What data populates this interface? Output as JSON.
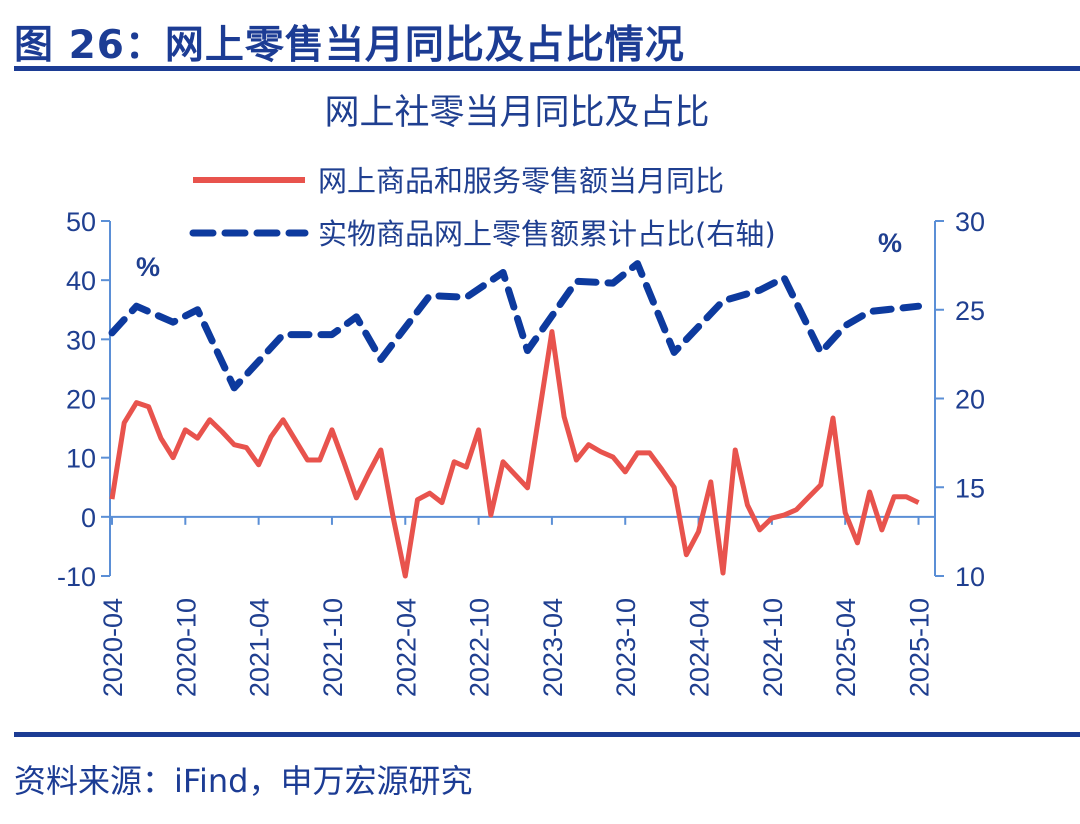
{
  "figure_title": "图 26：网上零售当月同比及占比情况",
  "source": "资料来源：iFind，申万宏源研究",
  "colors": {
    "red": "#e8534d",
    "blue": "#0d3a9e",
    "axis": "#5b8fd6",
    "text": "#1f3f90"
  },
  "chart_data": {
    "type": "line",
    "title": "网上社零当月同比及占比",
    "left_unit": "%",
    "right_unit": "%",
    "x_start": "2020-04",
    "x_end": "2025-10",
    "x_ticks": [
      "2020-04",
      "2020-10",
      "2021-04",
      "2021-10",
      "2022-04",
      "2022-10",
      "2023-04",
      "2023-10",
      "2024-04",
      "2024-10",
      "2025-04",
      "2025-10"
    ],
    "y_left": {
      "min": -10,
      "max": 50,
      "ticks": [
        "-10",
        "0",
        "10",
        "20",
        "30",
        "40",
        "50"
      ]
    },
    "y_right": {
      "min": 10,
      "max": 30,
      "ticks": [
        "10",
        "15",
        "20",
        "25",
        "30"
      ]
    },
    "legend_position": "top",
    "series": [
      {
        "name": "网上商品和服务零售额当月同比",
        "axis": "left",
        "style": "solid",
        "values": [
          3.0,
          15.9,
          19.3,
          18.6,
          13.3,
          10.0,
          14.7,
          13.3,
          16.4,
          14.4,
          12.2,
          11.7,
          8.8,
          13.5,
          16.4,
          13.0,
          9.6,
          9.6,
          14.7,
          9.1,
          3.2,
          7.4,
          11.3,
          0.0,
          -10.0,
          2.9,
          4.0,
          2.4,
          9.3,
          8.4,
          14.7,
          0.3,
          9.3,
          7.1,
          4.9,
          18.0,
          31.3,
          16.9,
          9.6,
          12.2,
          11.0,
          10.1,
          7.6,
          10.8,
          10.8,
          8.0,
          5.0,
          -6.4,
          -2.5,
          5.9,
          -9.5,
          11.3,
          2.0,
          -2.2,
          -0.2,
          0.3,
          1.2,
          3.3,
          5.4,
          16.7,
          0.7,
          -4.4,
          4.2,
          -2.2,
          3.4,
          3.4,
          2.4
        ]
      },
      {
        "name": "实物商品网上零售额累计占比(右轴)",
        "axis": "right",
        "style": "dashed",
        "points": [
          {
            "month": "2020-04",
            "value": 23.7
          },
          {
            "month": "2020-06",
            "value": 25.2
          },
          {
            "month": "2020-09",
            "value": 24.3
          },
          {
            "month": "2020-11",
            "value": 25.0
          },
          {
            "month": "2021-02",
            "value": 20.6
          },
          {
            "month": "2021-06",
            "value": 23.6
          },
          {
            "month": "2021-10",
            "value": 23.6
          },
          {
            "month": "2021-12",
            "value": 24.6
          },
          {
            "month": "2022-02",
            "value": 22.2
          },
          {
            "month": "2022-06",
            "value": 25.8
          },
          {
            "month": "2022-09",
            "value": 25.7
          },
          {
            "month": "2022-12",
            "value": 27.1
          },
          {
            "month": "2023-02",
            "value": 22.7
          },
          {
            "month": "2023-06",
            "value": 26.6
          },
          {
            "month": "2023-09",
            "value": 26.5
          },
          {
            "month": "2023-11",
            "value": 27.6
          },
          {
            "month": "2024-02",
            "value": 22.6
          },
          {
            "month": "2024-06",
            "value": 25.5
          },
          {
            "month": "2024-09",
            "value": 26.1
          },
          {
            "month": "2024-11",
            "value": 26.8
          },
          {
            "month": "2025-02",
            "value": 22.6
          },
          {
            "month": "2025-04",
            "value": 24.1
          },
          {
            "month": "2025-06",
            "value": 24.9
          },
          {
            "month": "2025-10",
            "value": 25.2
          }
        ]
      }
    ]
  }
}
